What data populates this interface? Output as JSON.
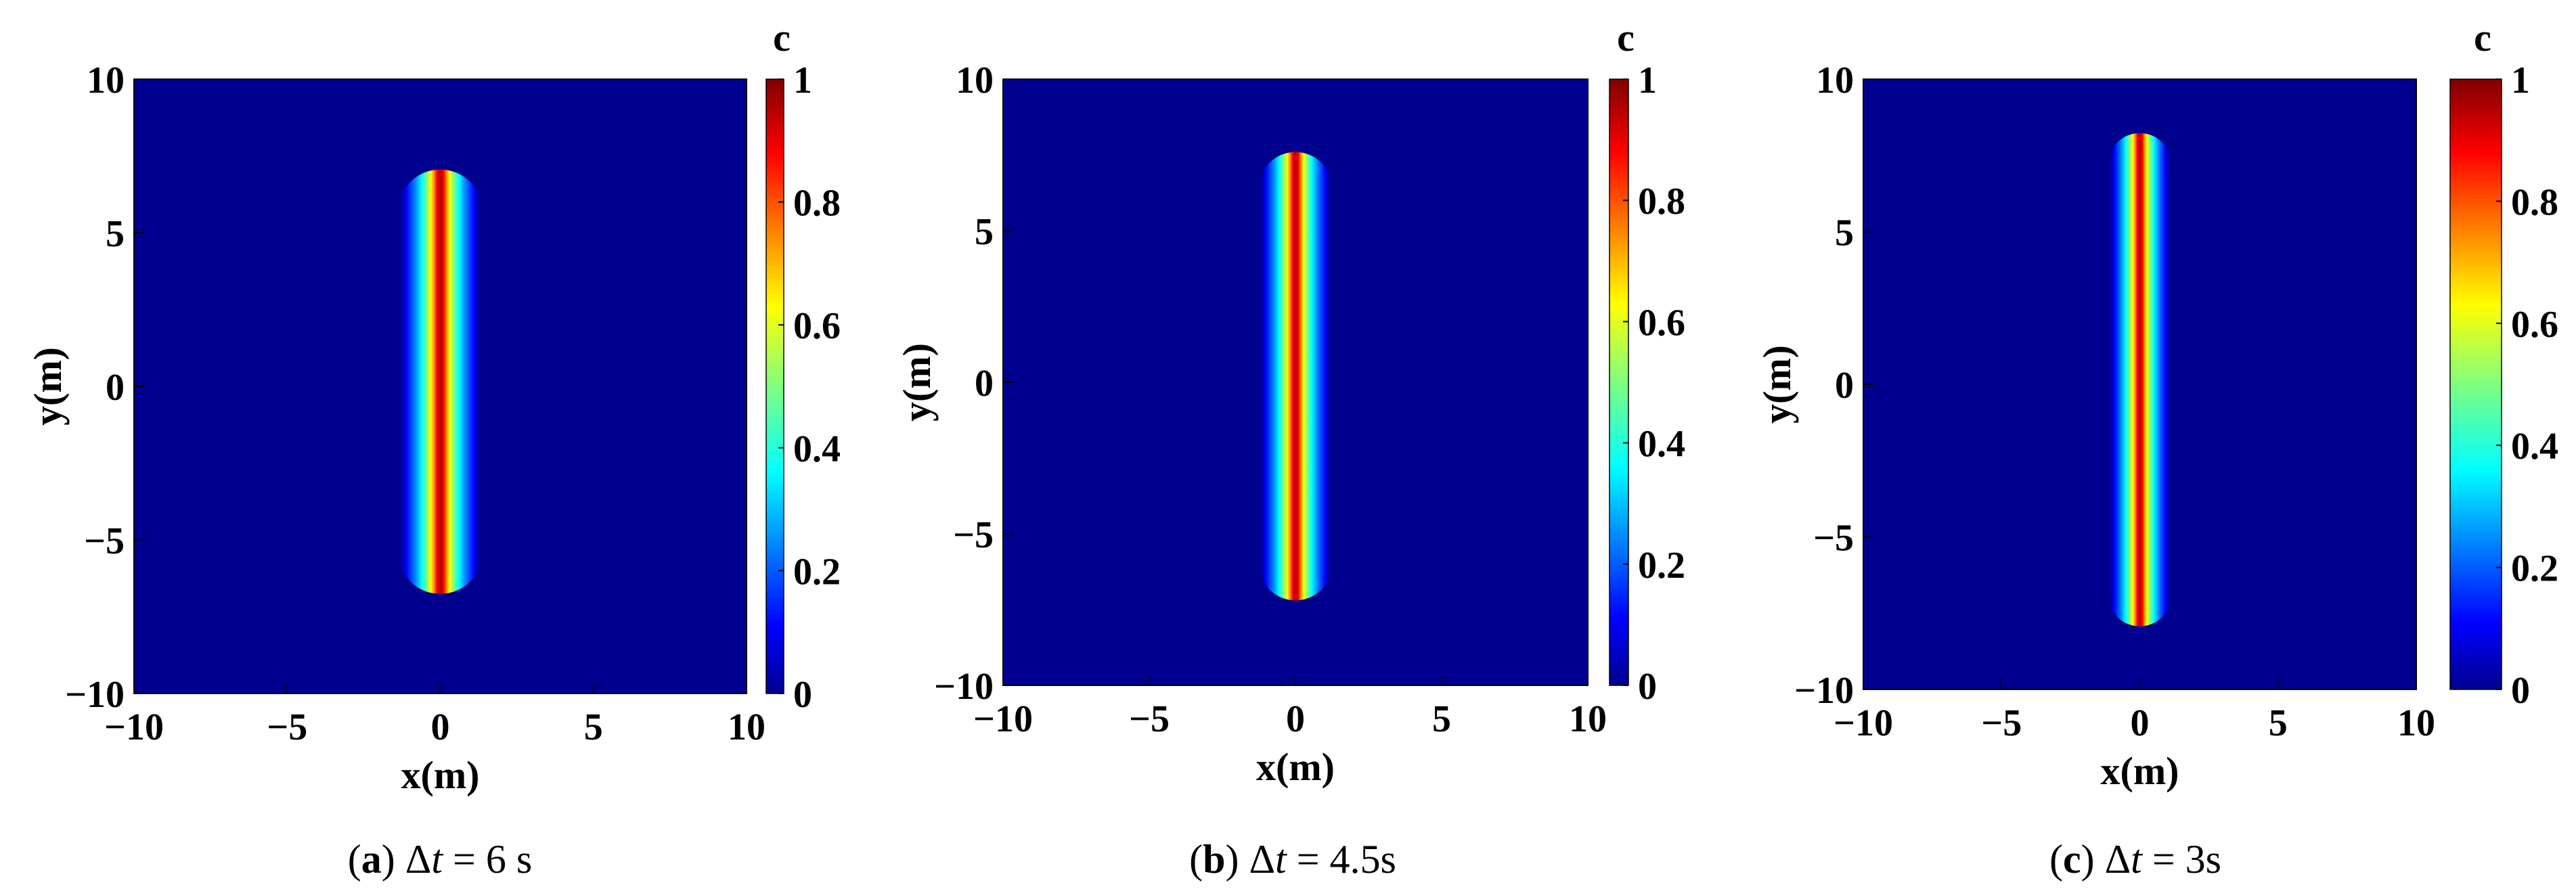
{
  "colors": {
    "background_field": "#00008f",
    "colormap": "jet"
  },
  "chart_data": [
    {
      "type": "heatmap",
      "panel": "a",
      "caption": {
        "letter": "a",
        "delta": "Δ",
        "t": "t",
        "rest": " = 6 s"
      },
      "xlabel": "x(m)",
      "ylabel": "y(m)",
      "colorbar_label": "c",
      "xlim": [
        -10,
        10
      ],
      "ylim": [
        -10,
        10
      ],
      "clim": [
        0,
        1
      ],
      "xticks": [
        "−10",
        "−5",
        "0",
        "5",
        "10"
      ],
      "yticks": [
        "10",
        "5",
        "0",
        "−5",
        "−10"
      ],
      "cticks": [
        "1",
        "0.8",
        "0.6",
        "0.4",
        "0.2",
        "0"
      ],
      "band": {
        "x_center": 0,
        "y_top": 6.3,
        "y_bottom": -6.0,
        "half_width": 0.6,
        "peak": 1
      }
    },
    {
      "type": "heatmap",
      "panel": "b",
      "caption": {
        "letter": "b",
        "delta": "Δ",
        "t": "t",
        "rest": " = 4.5s"
      },
      "xlabel": "x(m)",
      "ylabel": "y(m)",
      "colorbar_label": "c",
      "xlim": [
        -10,
        10
      ],
      "ylim": [
        -10,
        10
      ],
      "clim": [
        0,
        1
      ],
      "xticks": [
        "−10",
        "−5",
        "0",
        "5",
        "10"
      ],
      "yticks": [
        "10",
        "5",
        "0",
        "−5",
        "−10"
      ],
      "cticks": [
        "1",
        "0.8",
        "0.6",
        "0.4",
        "0.2",
        "0"
      ],
      "band": {
        "x_center": 0,
        "y_top": 6.9,
        "y_bottom": -6.5,
        "half_width": 0.55,
        "peak": 1
      }
    },
    {
      "type": "heatmap",
      "panel": "c",
      "caption": {
        "letter": "c",
        "delta": "Δ",
        "t": "t",
        "rest": " = 3s"
      },
      "xlabel": "x(m)",
      "ylabel": "y(m)",
      "colorbar_label": "c",
      "xlim": [
        -10,
        10
      ],
      "ylim": [
        -10,
        10
      ],
      "clim": [
        0,
        1
      ],
      "xticks": [
        "−10",
        "−5",
        "0",
        "5",
        "10"
      ],
      "yticks": [
        "10",
        "5",
        "0",
        "−5",
        "−10"
      ],
      "cticks": [
        "1",
        "0.8",
        "0.6",
        "0.4",
        "0.2",
        "0"
      ],
      "band": {
        "x_center": 0,
        "y_top": 7.6,
        "y_bottom": -7.3,
        "half_width": 0.5,
        "peak": 1
      }
    }
  ]
}
